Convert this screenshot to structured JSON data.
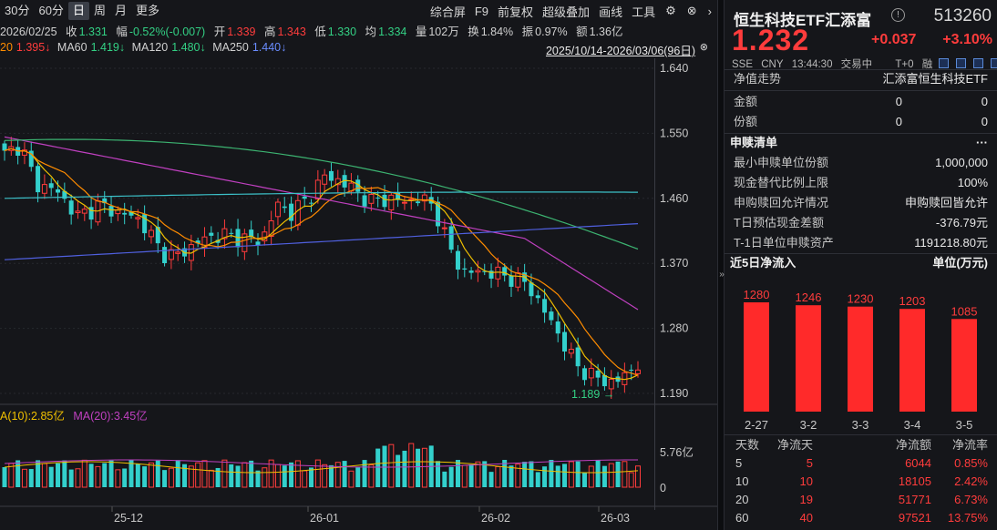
{
  "toolbar": {
    "periods": [
      {
        "label": "30分",
        "active": false
      },
      {
        "label": "60分",
        "active": false
      },
      {
        "label": "日",
        "active": true
      },
      {
        "label": "周",
        "active": false
      },
      {
        "label": "月",
        "active": false
      },
      {
        "label": "更多",
        "active": false
      }
    ],
    "tools": [
      "综合屏",
      "F9",
      "前复权",
      "超级叠加",
      "画线",
      "工具"
    ],
    "gear_icon": "gear-icon",
    "chevron_icon": "chevron-right-icon"
  },
  "info1": {
    "date": "2026/02/25",
    "close_label": "收",
    "close_value": "1.331",
    "amp_label": "幅",
    "amp_value": "-0.52%(-0.007)",
    "open_label": "开",
    "open_value": "1.339",
    "high_label": "高",
    "high_value": "1.343",
    "low_label": "低",
    "low_value": "1.330",
    "avg_label": "均",
    "avg_value": "1.334",
    "vol_label": "量",
    "vol_value": "102万",
    "turn_label": "换",
    "turn_value": "1.84%",
    "swing_label": "振",
    "swing_value": "0.97%",
    "amt_label": "额",
    "amt_value": "1.36亿"
  },
  "info2": {
    "ma20": "20",
    "ma20_value": "1.395↓",
    "ma60": "MA60",
    "ma60_value": "1.419↓",
    "ma120": "MA120",
    "ma120_value": "1.480↓",
    "ma250": "MA250",
    "ma250_value": "1.440↓",
    "range": "2025/10/14-2026/03/06(96日)",
    "range_arrow": "⊗"
  },
  "price_axis": [
    "1.640",
    "1.550",
    "1.460",
    "1.370",
    "1.280",
    "1.190"
  ],
  "low_marker": "1.189",
  "volume": {
    "ma10_label": "A(10):",
    "ma10_value": "2.85亿",
    "ma20_label": "MA(20):",
    "ma20_value": "3.45亿",
    "axis_top": "5.76亿",
    "axis_zero": "0"
  },
  "date_axis": [
    "25-12",
    "26-01",
    "26-02",
    "26-03"
  ],
  "colors": {
    "up": "#ff3c3c",
    "down": "#33d0cc",
    "ma5": "#f0f0f0",
    "ma10": "#f0c000",
    "ma20": "#ff8c00",
    "ma60": "#c040c0",
    "ma120": "#3cb371",
    "ma250": "#5060e0"
  },
  "chart_data": {
    "type": "candlestick",
    "title": "恒生科技ETF汇添富 513260 日K",
    "x_range": [
      "2025/10/14",
      "2026/03/06"
    ],
    "ylim": [
      1.19,
      1.64
    ],
    "ma_latest": {
      "MA20": 1.395,
      "MA60": 1.419,
      "MA120": 1.48,
      "MA250": 1.44
    },
    "selected_bar": {
      "date": "2026/02/25",
      "open": 1.339,
      "high": 1.343,
      "low": 1.33,
      "close": 1.331
    },
    "period_low": 1.189,
    "volume_ma": {
      "MA10": "2.85亿",
      "MA20": "3.45亿"
    }
  },
  "right": {
    "name": "恒生科技ETF汇添富",
    "code": "513260",
    "price": "1.232",
    "change": "+0.037",
    "pct": "+3.10%",
    "meta": [
      "SSE",
      "CNY",
      "13:44:30",
      "交易中",
      "T+0",
      "融"
    ],
    "nav_label": "净值走势",
    "nav_name": "汇添富恒生科技ETF",
    "amount_label": "金额",
    "amount_v1": "0",
    "amount_v2": "0",
    "shares_label": "份额",
    "shares_v1": "0",
    "shares_v2": "0",
    "redeem_title": "申赎清单",
    "redeem_more": "···",
    "redeem_rows": [
      {
        "label": "最小申赎单位份额",
        "value": "1,000,000"
      },
      {
        "label": "现金替代比例上限",
        "value": "100%"
      },
      {
        "label": "申购赎回允许情况",
        "value": "申购赎回皆允许"
      },
      {
        "label": "T日预估现金差额",
        "value": "-376.79元"
      },
      {
        "label": "T-1日单位申赎资产",
        "value": "1191218.80元"
      }
    ],
    "flow_title": "近5日净流入",
    "flow_unit": "单位(万元)",
    "flow_table_headers": [
      "天数",
      "净流天",
      "净流额",
      "净流率"
    ],
    "flow_table": [
      {
        "days": "5",
        "flow_days": "5",
        "amount": "6044",
        "rate": "0.85%"
      },
      {
        "days": "10",
        "flow_days": "10",
        "amount": "18105",
        "rate": "2.42%"
      },
      {
        "days": "20",
        "flow_days": "19",
        "amount": "51771",
        "rate": "6.73%"
      },
      {
        "days": "60",
        "flow_days": "40",
        "amount": "97521",
        "rate": "13.75%"
      }
    ]
  },
  "flow_chart": {
    "type": "bar",
    "categories": [
      "2-27",
      "3-2",
      "3-3",
      "3-4",
      "3-5"
    ],
    "values": [
      1280,
      1246,
      1230,
      1203,
      1085
    ],
    "labels": [
      "1280",
      "1246",
      "1230",
      "1203",
      "1085"
    ],
    "color": "#ff2a2a"
  },
  "splitter_arrow": "»"
}
